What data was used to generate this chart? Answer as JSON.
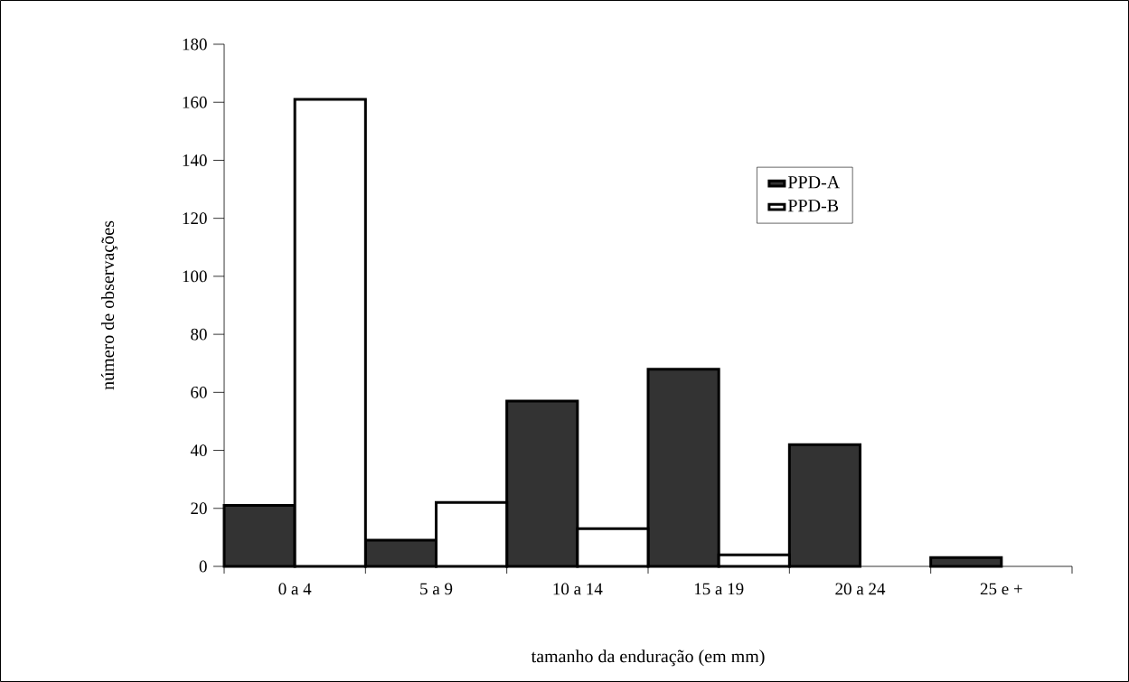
{
  "chart_data": {
    "type": "bar",
    "xlabel": "tamanho da enduração (em mm)",
    "ylabel": "número de observações",
    "categories": [
      "0 a 4",
      "5 a 9",
      "10 a 14",
      "15 a 19",
      "20 a 24",
      "25 e +"
    ],
    "series": [
      {
        "name": "PPD-A",
        "color": "#333333",
        "values": [
          21,
          9,
          57,
          68,
          42,
          3
        ]
      },
      {
        "name": "PPD-B",
        "color": "#ffffff",
        "values": [
          161,
          22,
          13,
          4,
          null,
          null
        ]
      }
    ],
    "ylim": [
      0,
      180
    ],
    "yticks": [
      0,
      20,
      40,
      60,
      80,
      100,
      120,
      140,
      160,
      180
    ],
    "legend": "top right"
  }
}
